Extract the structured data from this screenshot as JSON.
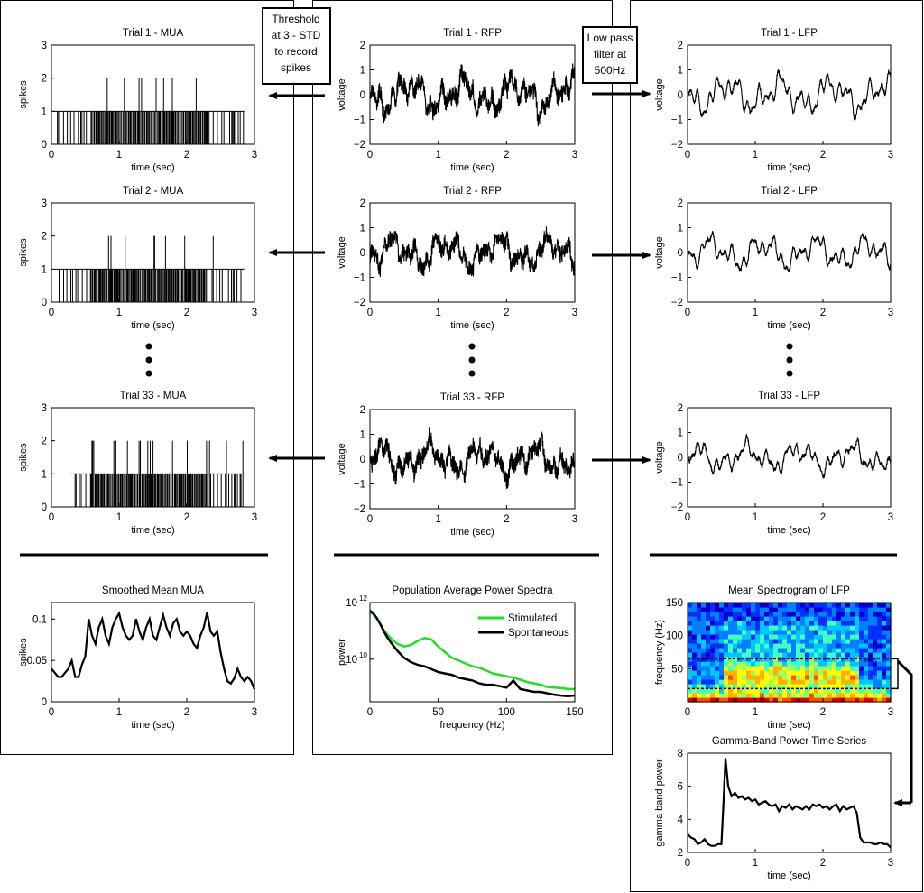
{
  "annotations": {
    "threshold_lines": [
      "Threshold",
      "at 3 - STD",
      "to record",
      "spikes"
    ],
    "lowpass_lines": [
      "Low pass",
      "filter at",
      "500Hz"
    ]
  },
  "legend": {
    "stimulated": "Stimulated",
    "spontaneous": "Spontaneous"
  },
  "colors": {
    "stimulated": "#22dd22",
    "spontaneous": "#000000",
    "frame": "#000000"
  },
  "charts": [
    {
      "id": "mua1",
      "type": "spike-raster",
      "title": "Trial 1 - MUA",
      "xlabel": "time (sec)",
      "ylabel": "spikes",
      "xlim": [
        0,
        3
      ],
      "ylim": [
        0,
        3
      ],
      "xticks": [
        "0",
        "1",
        "2",
        "3"
      ],
      "yticks": [
        "0",
        "1",
        "2",
        "3"
      ],
      "active_range": [
        0.02,
        2.85
      ],
      "seed": 11
    },
    {
      "id": "mua2",
      "type": "spike-raster",
      "title": "Trial 2 - MUA",
      "xlabel": "time (sec)",
      "ylabel": "spikes",
      "xlim": [
        0,
        3
      ],
      "ylim": [
        0,
        3
      ],
      "xticks": [
        "0",
        "1",
        "2",
        "3"
      ],
      "yticks": [
        "0",
        "1",
        "2",
        "3"
      ],
      "active_range": [
        0.05,
        2.85
      ],
      "seed": 23
    },
    {
      "id": "mua33",
      "type": "spike-raster",
      "title": "Trial 33 - MUA",
      "xlabel": "time (sec)",
      "ylabel": "spikes",
      "xlim": [
        0,
        3
      ],
      "ylim": [
        0,
        3
      ],
      "xticks": [
        "0",
        "1",
        "2",
        "3"
      ],
      "yticks": [
        "0",
        "1",
        "2",
        "3"
      ],
      "active_range": [
        0.28,
        2.85
      ],
      "seed": 37
    },
    {
      "id": "rfp1",
      "type": "trace",
      "title": "Trial 1 - RFP",
      "xlabel": "time (sec)",
      "ylabel": "voltage",
      "xlim": [
        0,
        3
      ],
      "ylim": [
        -2,
        2
      ],
      "xticks": [
        "0",
        "1",
        "2",
        "3"
      ],
      "yticks": [
        "−2",
        "−1",
        "0",
        "1",
        "2"
      ],
      "seed": 5,
      "noise": 0.35,
      "amp": 0.9
    },
    {
      "id": "rfp2",
      "type": "trace",
      "title": "Trial 2 - RFP",
      "xlabel": "time (sec)",
      "ylabel": "voltage",
      "xlim": [
        0,
        3
      ],
      "ylim": [
        -2,
        2
      ],
      "xticks": [
        "0",
        "1",
        "2",
        "3"
      ],
      "yticks": [
        "−2",
        "−1",
        "0",
        "1",
        "2"
      ],
      "seed": 9,
      "noise": 0.35,
      "amp": 0.8
    },
    {
      "id": "rfp33",
      "type": "trace",
      "title": "Trial  33 - RFP",
      "xlabel": "time (sec)",
      "ylabel": "voltage",
      "xlim": [
        0,
        3
      ],
      "ylim": [
        -2,
        2
      ],
      "xticks": [
        "0",
        "1",
        "2",
        "3"
      ],
      "yticks": [
        "−2",
        "−1",
        "0",
        "1",
        "2"
      ],
      "seed": 13,
      "noise": 0.35,
      "amp": 0.8
    },
    {
      "id": "lfp1",
      "type": "trace",
      "title": "Trial 1 - LFP",
      "xlabel": "time (sec)",
      "ylabel": "voltage",
      "xlim": [
        0,
        3
      ],
      "ylim": [
        -2,
        2
      ],
      "xticks": [
        "0",
        "1",
        "2",
        "3"
      ],
      "yticks": [
        "−2",
        "−1",
        "0",
        "1",
        "2"
      ],
      "seed": 5,
      "noise": 0.08,
      "amp": 0.9
    },
    {
      "id": "lfp2",
      "type": "trace",
      "title": "Trial 2 - LFP",
      "xlabel": "time (sec)",
      "ylabel": "voltage",
      "xlim": [
        0,
        3
      ],
      "ylim": [
        -2,
        2
      ],
      "xticks": [
        "0",
        "1",
        "2",
        "3"
      ],
      "yticks": [
        "−2",
        "−1",
        "0",
        "1",
        "2"
      ],
      "seed": 9,
      "noise": 0.08,
      "amp": 0.8
    },
    {
      "id": "lfp33",
      "type": "trace",
      "title": "Trial 33 - LFP",
      "xlabel": "time (sec)",
      "ylabel": "voltage",
      "xlim": [
        0,
        3
      ],
      "ylim": [
        -2,
        2
      ],
      "xticks": [
        "0",
        "1",
        "2",
        "3"
      ],
      "yticks": [
        "−2",
        "−1",
        "0",
        "1",
        "2"
      ],
      "seed": 13,
      "noise": 0.08,
      "amp": 0.7
    },
    {
      "id": "meanmua",
      "type": "line",
      "title": "Smoothed Mean MUA",
      "xlabel": "time (sec)",
      "ylabel": "spikes",
      "xlim": [
        0,
        3
      ],
      "ylim": [
        0,
        0.12
      ],
      "xticks": [
        "0",
        "1",
        "2",
        "3"
      ],
      "yticks": [
        "0",
        "0.05",
        "0.1"
      ],
      "x": [
        0,
        0.05,
        0.1,
        0.15,
        0.2,
        0.25,
        0.3,
        0.35,
        0.4,
        0.45,
        0.5,
        0.55,
        0.6,
        0.65,
        0.7,
        0.75,
        0.8,
        0.85,
        0.9,
        0.95,
        1,
        1.05,
        1.1,
        1.15,
        1.2,
        1.25,
        1.3,
        1.35,
        1.4,
        1.45,
        1.5,
        1.55,
        1.6,
        1.65,
        1.7,
        1.75,
        1.8,
        1.85,
        1.9,
        1.95,
        2,
        2.05,
        2.1,
        2.15,
        2.2,
        2.25,
        2.3,
        2.35,
        2.4,
        2.45,
        2.5,
        2.55,
        2.6,
        2.65,
        2.7,
        2.75,
        2.8,
        2.85,
        2.9,
        2.95,
        3
      ],
      "y": [
        0.04,
        0.035,
        0.03,
        0.03,
        0.035,
        0.04,
        0.05,
        0.03,
        0.03,
        0.045,
        0.055,
        0.1,
        0.08,
        0.07,
        0.09,
        0.1,
        0.08,
        0.07,
        0.09,
        0.1,
        0.107,
        0.09,
        0.08,
        0.075,
        0.08,
        0.1,
        0.085,
        0.075,
        0.09,
        0.1,
        0.08,
        0.075,
        0.09,
        0.105,
        0.09,
        0.08,
        0.095,
        0.1,
        0.085,
        0.08,
        0.085,
        0.08,
        0.07,
        0.065,
        0.08,
        0.09,
        0.108,
        0.085,
        0.08,
        0.085,
        0.06,
        0.04,
        0.025,
        0.022,
        0.028,
        0.04,
        0.03,
        0.025,
        0.03,
        0.025,
        0.015
      ]
    },
    {
      "id": "psd",
      "type": "line",
      "title": "Population Average Power Spectra",
      "xlabel": "frequency (Hz)",
      "ylabel": "power",
      "xlim": [
        0,
        150
      ],
      "ylim": [
        8.5,
        12
      ],
      "xticks": [
        "0",
        "50",
        "100",
        "150"
      ],
      "ytick_base": "10",
      "ytick_exponents": [
        "10",
        "12"
      ],
      "ytick_values": [
        10,
        12
      ],
      "x": [
        0,
        2,
        5,
        8,
        10,
        13,
        16,
        20,
        25,
        30,
        35,
        40,
        45,
        50,
        55,
        60,
        65,
        70,
        75,
        80,
        85,
        90,
        95,
        100,
        105,
        110,
        115,
        120,
        125,
        130,
        135,
        140,
        145,
        150
      ],
      "series": [
        {
          "name": "Stimulated",
          "color": "#22dd22",
          "y": [
            11.65,
            11.6,
            11.45,
            11.2,
            11.05,
            10.85,
            10.7,
            10.55,
            10.45,
            10.5,
            10.65,
            10.75,
            10.7,
            10.45,
            10.25,
            10.05,
            9.95,
            9.85,
            9.75,
            9.7,
            9.6,
            9.5,
            9.45,
            9.4,
            9.35,
            9.28,
            9.2,
            9.15,
            9.1,
            9.02,
            9.0,
            8.98,
            8.95,
            8.95
          ]
        },
        {
          "name": "Spontaneous",
          "color": "#000000",
          "y": [
            11.7,
            11.65,
            11.45,
            11.2,
            11.0,
            10.75,
            10.55,
            10.3,
            10.05,
            9.9,
            9.8,
            9.75,
            9.65,
            9.55,
            9.5,
            9.45,
            9.35,
            9.3,
            9.25,
            9.15,
            9.1,
            9.1,
            9.05,
            9.0,
            9.25,
            8.95,
            8.9,
            8.85,
            8.85,
            8.8,
            8.75,
            8.72,
            8.7,
            8.72
          ]
        }
      ]
    },
    {
      "id": "spectro",
      "type": "heatmap",
      "title": "Mean Spectrogram of LFP",
      "xlabel": "time (sec)",
      "ylabel": "frequency (Hz)",
      "xlim": [
        0,
        3
      ],
      "ylim": [
        0,
        150
      ],
      "xticks": [
        "0",
        "1",
        "2",
        "3"
      ],
      "yticks": [
        "50",
        "100",
        "150"
      ],
      "band": [
        20,
        65
      ],
      "stim_range": [
        0.55,
        2.55
      ]
    },
    {
      "id": "gamma",
      "type": "line",
      "title": "Gamma-Band Power Time Series",
      "xlabel": "time (sec)",
      "ylabel": "gamma band power",
      "xlim": [
        0,
        3
      ],
      "ylim": [
        2,
        8
      ],
      "xticks": [
        "0",
        "1",
        "2",
        "3"
      ],
      "yticks": [
        "2",
        "4",
        "6",
        "8"
      ],
      "x": [
        0,
        0.05,
        0.1,
        0.15,
        0.2,
        0.25,
        0.3,
        0.35,
        0.4,
        0.45,
        0.5,
        0.53,
        0.56,
        0.6,
        0.65,
        0.7,
        0.75,
        0.8,
        0.85,
        0.9,
        0.95,
        1,
        1.05,
        1.1,
        1.15,
        1.2,
        1.25,
        1.3,
        1.35,
        1.4,
        1.45,
        1.5,
        1.55,
        1.6,
        1.65,
        1.7,
        1.75,
        1.8,
        1.85,
        1.9,
        1.95,
        2,
        2.05,
        2.1,
        2.15,
        2.2,
        2.25,
        2.3,
        2.35,
        2.4,
        2.45,
        2.5,
        2.55,
        2.6,
        2.65,
        2.7,
        2.75,
        2.8,
        2.85,
        2.9,
        2.95,
        3
      ],
      "y": [
        3.1,
        2.9,
        2.8,
        2.5,
        2.6,
        2.8,
        2.5,
        2.4,
        2.4,
        2.5,
        2.5,
        5.0,
        7.7,
        6.0,
        5.4,
        5.6,
        5.3,
        5.4,
        5.2,
        5.3,
        5.1,
        5.2,
        4.9,
        5.0,
        5.1,
        4.9,
        4.8,
        4.9,
        4.5,
        4.8,
        4.7,
        4.9,
        4.6,
        4.8,
        4.7,
        4.6,
        4.8,
        4.6,
        4.9,
        4.8,
        4.9,
        4.7,
        4.8,
        4.6,
        4.8,
        4.9,
        4.5,
        4.8,
        4.6,
        4.7,
        4.8,
        4.4,
        2.9,
        2.6,
        2.6,
        2.6,
        2.5,
        2.5,
        2.6,
        2.5,
        2.5,
        2.3
      ]
    }
  ]
}
